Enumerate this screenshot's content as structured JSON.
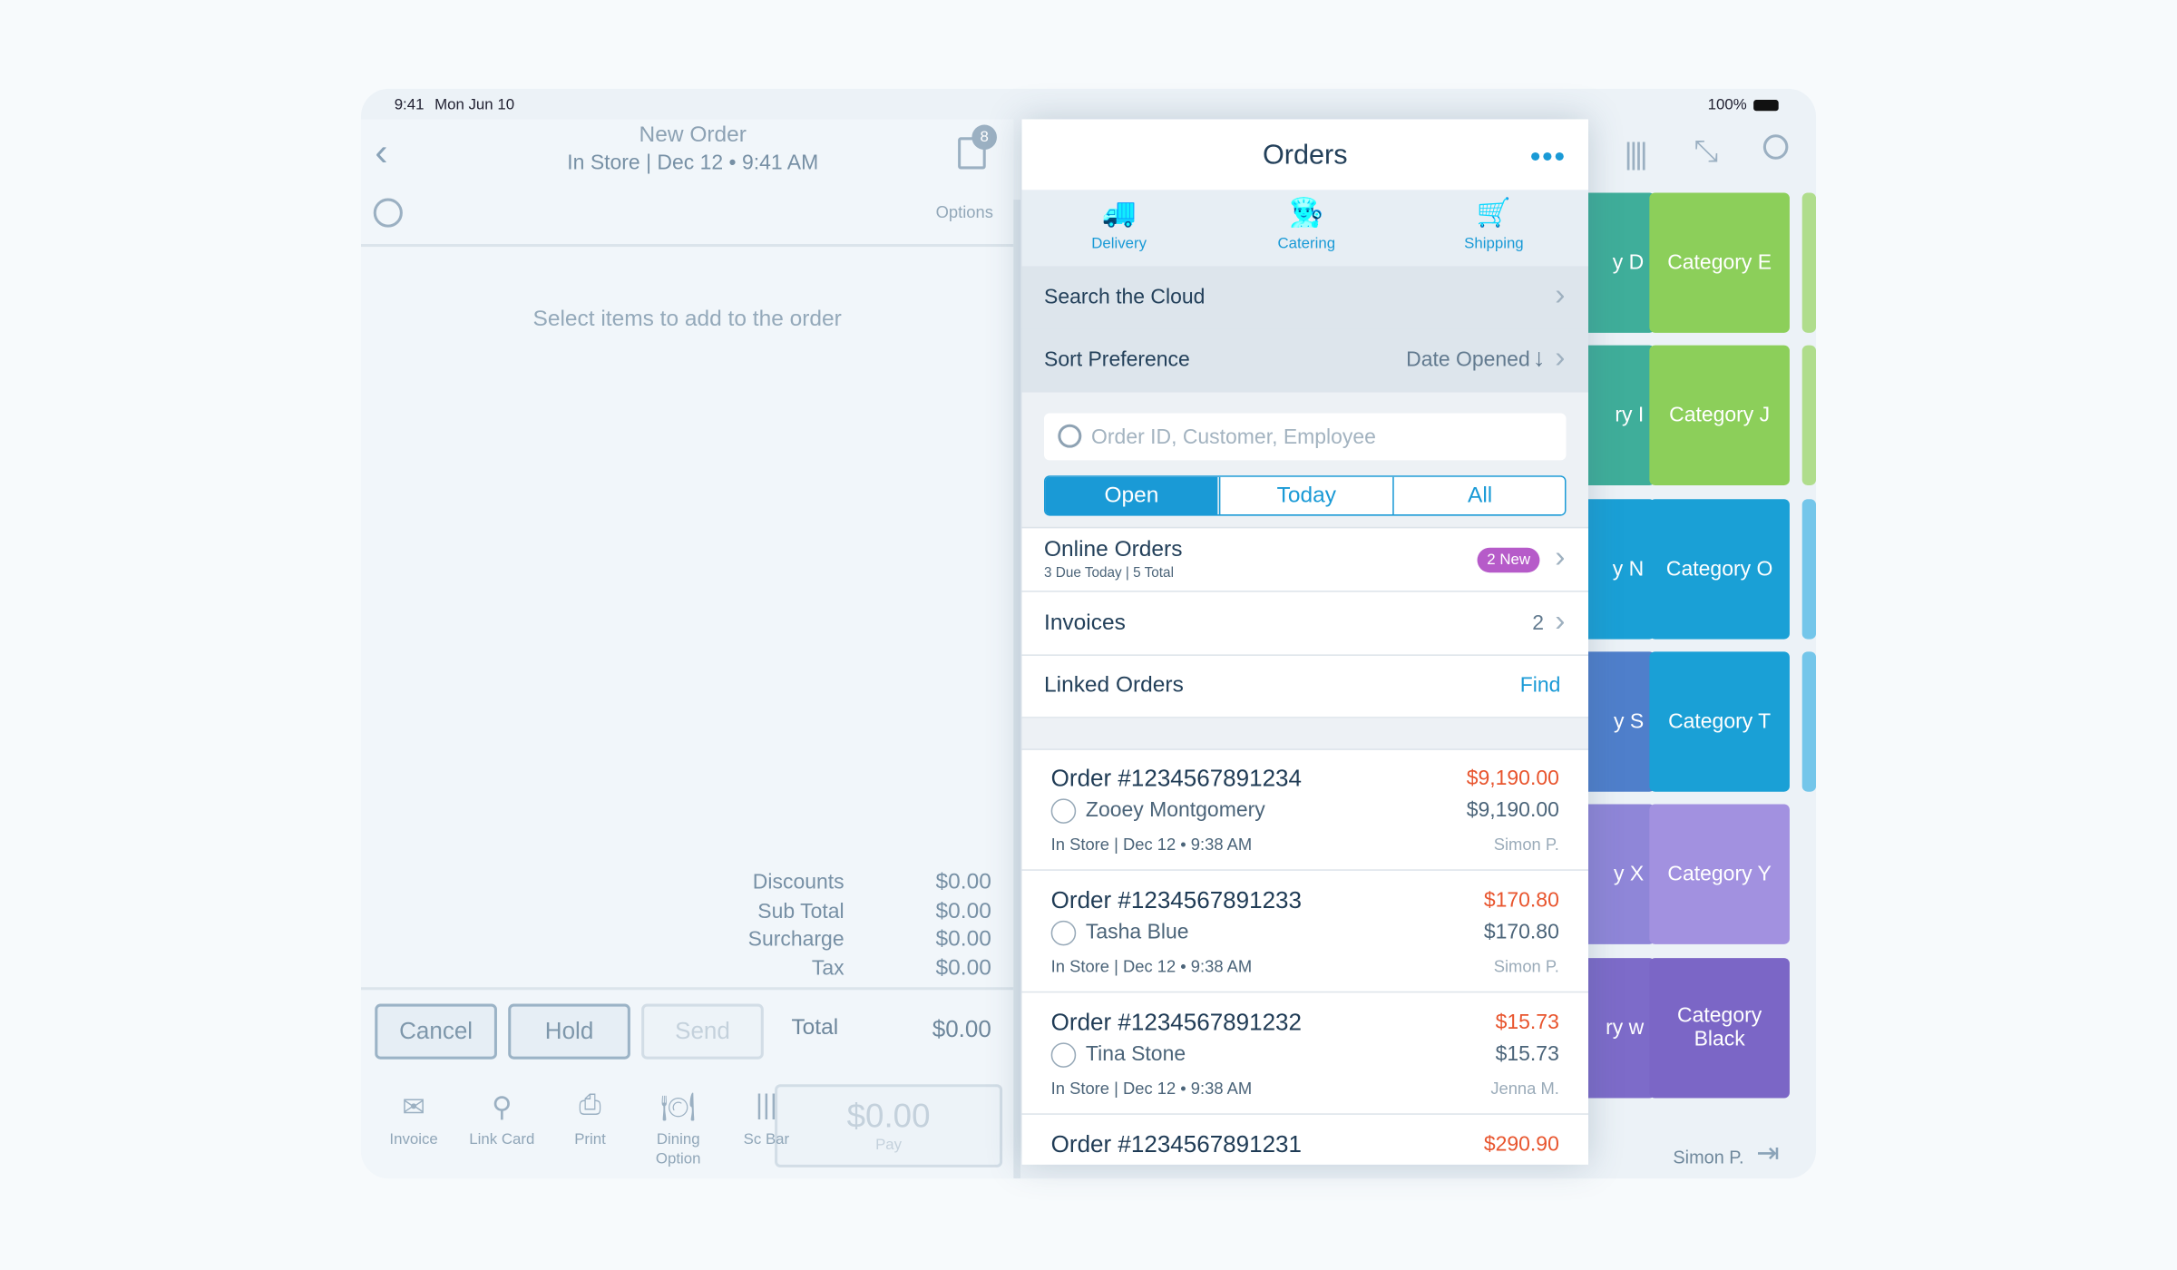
{
  "status": {
    "time": "9:41",
    "date": "Mon Jun 10",
    "battery": "100%"
  },
  "order": {
    "title": "New Order",
    "subtitle": "In Store | Dec 12 • 9:41 AM",
    "badge": "8",
    "options": "Options",
    "empty": "Select items to add to the order",
    "totals": [
      {
        "label": "Discounts",
        "value": "$0.00"
      },
      {
        "label": "Sub Total",
        "value": "$0.00"
      },
      {
        "label": "Surcharge",
        "value": "$0.00"
      },
      {
        "label": "Tax",
        "value": "$0.00"
      }
    ],
    "total_label": "Total",
    "total_value": "$0.00",
    "buttons": [
      "Cancel",
      "Hold",
      "Send"
    ],
    "toolbar": [
      "Invoice",
      "Link Card",
      "Print",
      "Dining Option",
      "Sc Bar"
    ],
    "pay_amount": "$0.00",
    "pay_label": "Pay"
  },
  "orders": {
    "title": "Orders",
    "tabs": [
      "Delivery",
      "Catering",
      "Shipping"
    ],
    "search_cloud": "Search the Cloud",
    "sort_label": "Sort Preference",
    "sort_value": "Date Opened",
    "search_placeholder": "Order ID, Customer, Employee",
    "segments": [
      "Open",
      "Today",
      "All"
    ],
    "online_title": "Online Orders",
    "online_sub": "3 Due Today | 5 Total",
    "online_badge": "2 New",
    "invoices_label": "Invoices",
    "invoices_count": "2",
    "linked_label": "Linked Orders",
    "linked_action": "Find",
    "list": [
      {
        "id": "Order #1234567891234",
        "customer": "Zooey Montgomery",
        "meta": "In Store | Dec 12 • 9:38 AM",
        "due": "$9,190.00",
        "total": "$9,190.00",
        "employee": "Simon P."
      },
      {
        "id": "Order #1234567891233",
        "customer": "Tasha Blue",
        "meta": "In Store | Dec 12 • 9:38 AM",
        "due": "$170.80",
        "total": "$170.80",
        "employee": "Simon P."
      },
      {
        "id": "Order #1234567891232",
        "customer": "Tina Stone",
        "meta": "In Store | Dec 12 • 9:38 AM",
        "due": "$15.73",
        "total": "$15.73",
        "employee": "Jenna M."
      },
      {
        "id": "Order #1234567891231",
        "due": "$290.90"
      }
    ]
  },
  "categories": {
    "partial": [
      "y D",
      "ry I",
      "y N",
      "y S",
      "y X",
      "ry w"
    ],
    "full": [
      "Category E",
      "Category J",
      "Category O",
      "Category T",
      "Category Y",
      "Category Black"
    ]
  },
  "user": "Simon P."
}
